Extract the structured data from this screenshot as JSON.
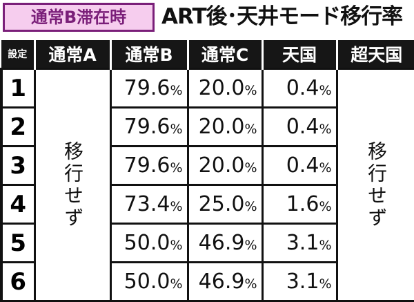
{
  "badge": "通常B滞在時",
  "title": "ART後･天井モード移行率",
  "table": {
    "header": [
      "設定",
      "通常A",
      "通常B",
      "通常C",
      "天国",
      "超天国"
    ],
    "normal_a_note": "移行せず",
    "super_heaven_note": "移行せず",
    "rows": [
      [
        "1",
        "79.6%",
        "20.0%",
        "0.4%"
      ],
      [
        "2",
        "79.6%",
        "20.0%",
        "0.4%"
      ],
      [
        "3",
        "79.6%",
        "20.0%",
        "0.4%"
      ],
      [
        "4",
        "73.4%",
        "25.0%",
        "1.6%"
      ],
      [
        "5",
        "50.0%",
        "46.9%",
        "3.1%"
      ],
      [
        "6",
        "50.0%",
        "46.9%",
        "3.1%"
      ]
    ]
  }
}
